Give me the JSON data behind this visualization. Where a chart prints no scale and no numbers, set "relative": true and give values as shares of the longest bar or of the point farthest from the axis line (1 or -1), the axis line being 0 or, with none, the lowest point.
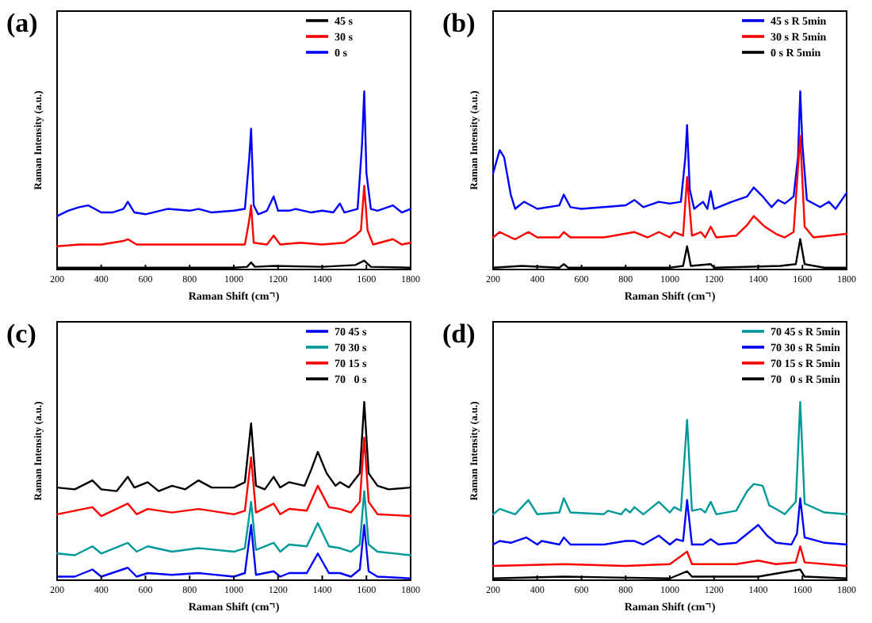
{
  "chart_data": [
    {
      "type": "line",
      "title": "(a)",
      "xlabel": "Raman Shift (cm⁻¹)",
      "ylabel": "Raman Intensity (a.u.)",
      "relative": true,
      "xlim": [
        200,
        1800
      ],
      "xticks": [
        200,
        400,
        600,
        800,
        1000,
        1200,
        1400,
        1600,
        1800
      ],
      "tick_labels": "x",
      "legend": "top right",
      "line_style": "solid",
      "series": [
        {
          "name": "45 s",
          "color": "#000000",
          "x": [
            200,
            600,
            1000,
            1060,
            1078,
            1095,
            1180,
            1400,
            1550,
            1590,
            1620,
            1800
          ],
          "values": [
            0.01,
            0.01,
            0.01,
            0.015,
            0.04,
            0.015,
            0.02,
            0.015,
            0.025,
            0.05,
            0.015,
            0.01
          ]
        },
        {
          "name": "30 s",
          "color": "#ff0000",
          "x": [
            200,
            300,
            400,
            500,
            520,
            560,
            700,
            900,
            1050,
            1070,
            1078,
            1090,
            1150,
            1180,
            1210,
            1300,
            1400,
            1500,
            1550,
            1575,
            1590,
            1605,
            1630,
            1720,
            1760,
            1800
          ],
          "values": [
            0.13,
            0.14,
            0.14,
            0.16,
            0.17,
            0.14,
            0.14,
            0.14,
            0.14,
            0.28,
            0.36,
            0.15,
            0.14,
            0.19,
            0.14,
            0.15,
            0.14,
            0.15,
            0.19,
            0.22,
            0.47,
            0.22,
            0.14,
            0.17,
            0.14,
            0.15
          ]
        },
        {
          "name": "0 s",
          "color": "#0000ff",
          "x": [
            200,
            250,
            300,
            340,
            400,
            450,
            500,
            520,
            550,
            600,
            700,
            800,
            840,
            900,
            1000,
            1050,
            1070,
            1078,
            1090,
            1110,
            1150,
            1180,
            1200,
            1250,
            1280,
            1350,
            1400,
            1450,
            1480,
            1500,
            1560,
            1580,
            1590,
            1600,
            1620,
            1650,
            1720,
            1760,
            1800
          ],
          "values": [
            0.3,
            0.33,
            0.35,
            0.36,
            0.32,
            0.32,
            0.34,
            0.38,
            0.32,
            0.31,
            0.34,
            0.33,
            0.34,
            0.32,
            0.33,
            0.34,
            0.63,
            0.79,
            0.36,
            0.31,
            0.33,
            0.41,
            0.33,
            0.33,
            0.34,
            0.32,
            0.33,
            0.32,
            0.37,
            0.32,
            0.34,
            0.7,
            1.0,
            0.54,
            0.34,
            0.33,
            0.36,
            0.32,
            0.34
          ]
        }
      ]
    },
    {
      "type": "line",
      "title": "(b)",
      "xlabel": "Raman Shift (cm⁻¹)",
      "ylabel": "Raman Intensity (a.u.)",
      "relative": true,
      "xlim": [
        200,
        1800
      ],
      "xticks": [
        200,
        400,
        600,
        800,
        1000,
        1200,
        1400,
        1600,
        1800
      ],
      "tick_labels": "x",
      "legend": "top right",
      "line_style": "solid",
      "series": [
        {
          "name": "45 s R 5min",
          "color": "#0000ff",
          "x": [
            200,
            230,
            250,
            280,
            300,
            340,
            400,
            500,
            520,
            550,
            600,
            700,
            800,
            840,
            880,
            950,
            1000,
            1050,
            1070,
            1078,
            1090,
            1110,
            1150,
            1170,
            1185,
            1200,
            1280,
            1350,
            1380,
            1420,
            1460,
            1490,
            1520,
            1560,
            1580,
            1590,
            1600,
            1620,
            1680,
            1720,
            1750,
            1800
          ],
          "values": [
            0.54,
            0.67,
            0.63,
            0.42,
            0.34,
            0.38,
            0.34,
            0.36,
            0.42,
            0.35,
            0.34,
            0.35,
            0.36,
            0.39,
            0.35,
            0.38,
            0.37,
            0.38,
            0.63,
            0.81,
            0.45,
            0.34,
            0.38,
            0.34,
            0.44,
            0.34,
            0.38,
            0.41,
            0.46,
            0.41,
            0.35,
            0.39,
            0.37,
            0.41,
            0.63,
            1.0,
            0.7,
            0.39,
            0.35,
            0.38,
            0.34,
            0.43
          ]
        },
        {
          "name": "30 s R 5min",
          "color": "#ff0000",
          "x": [
            200,
            230,
            280,
            300,
            360,
            400,
            500,
            520,
            550,
            700,
            840,
            900,
            950,
            1000,
            1020,
            1060,
            1078,
            1100,
            1140,
            1160,
            1185,
            1210,
            1300,
            1350,
            1380,
            1430,
            1480,
            1520,
            1560,
            1590,
            1610,
            1650,
            1800
          ],
          "values": [
            0.18,
            0.21,
            0.18,
            0.17,
            0.21,
            0.18,
            0.18,
            0.21,
            0.18,
            0.18,
            0.21,
            0.18,
            0.21,
            0.18,
            0.21,
            0.19,
            0.52,
            0.19,
            0.21,
            0.18,
            0.24,
            0.18,
            0.19,
            0.25,
            0.3,
            0.24,
            0.2,
            0.18,
            0.21,
            0.75,
            0.24,
            0.18,
            0.2
          ]
        },
        {
          "name": "0 s R 5min",
          "color": "#000000",
          "x": [
            200,
            330,
            500,
            520,
            540,
            1000,
            1060,
            1078,
            1095,
            1185,
            1200,
            1500,
            1570,
            1590,
            1610,
            1700,
            1800
          ],
          "values": [
            0.01,
            0.02,
            0.01,
            0.03,
            0.01,
            0.01,
            0.02,
            0.13,
            0.02,
            0.03,
            0.01,
            0.02,
            0.03,
            0.17,
            0.03,
            0.01,
            0.01
          ]
        }
      ]
    },
    {
      "type": "line",
      "title": "(c)",
      "xlabel": "Raman Shift (cm⁻¹)",
      "ylabel": "Raman Intensity (a.u.)",
      "relative": true,
      "xlim": [
        200,
        1800
      ],
      "xticks": [
        200,
        400,
        600,
        800,
        1000,
        1200,
        1400,
        1600,
        1800
      ],
      "tick_labels": "x",
      "legend": "top right",
      "line_style": "solid",
      "series": [
        {
          "name": "70 45 s",
          "color": "#0000ff",
          "x": [
            200,
            280,
            360,
            400,
            520,
            560,
            610,
            720,
            840,
            1000,
            1050,
            1078,
            1100,
            1180,
            1210,
            1250,
            1330,
            1380,
            1430,
            1480,
            1530,
            1570,
            1590,
            1610,
            1650,
            1800
          ],
          "values": [
            0.02,
            0.02,
            0.06,
            0.02,
            0.07,
            0.02,
            0.04,
            0.03,
            0.04,
            0.02,
            0.04,
            0.31,
            0.03,
            0.05,
            0.02,
            0.04,
            0.04,
            0.15,
            0.04,
            0.04,
            0.02,
            0.06,
            0.31,
            0.05,
            0.02,
            0.01
          ]
        },
        {
          "name": "70 30 s",
          "color": "#009999",
          "x": [
            200,
            280,
            360,
            400,
            520,
            560,
            610,
            720,
            840,
            1000,
            1050,
            1078,
            1100,
            1180,
            1210,
            1250,
            1330,
            1380,
            1430,
            1480,
            1530,
            1570,
            1590,
            1610,
            1650,
            1800
          ],
          "values": [
            0.15,
            0.14,
            0.19,
            0.15,
            0.21,
            0.16,
            0.19,
            0.16,
            0.18,
            0.16,
            0.18,
            0.44,
            0.17,
            0.21,
            0.16,
            0.2,
            0.19,
            0.32,
            0.19,
            0.18,
            0.16,
            0.2,
            0.5,
            0.2,
            0.16,
            0.14
          ]
        },
        {
          "name": "70 15 s",
          "color": "#ff0000",
          "x": [
            200,
            360,
            400,
            520,
            560,
            610,
            720,
            840,
            1000,
            1050,
            1078,
            1100,
            1180,
            1210,
            1250,
            1330,
            1380,
            1430,
            1480,
            1530,
            1570,
            1590,
            1610,
            1650,
            1800
          ],
          "values": [
            0.37,
            0.41,
            0.36,
            0.43,
            0.37,
            0.4,
            0.38,
            0.4,
            0.37,
            0.39,
            0.69,
            0.38,
            0.43,
            0.37,
            0.4,
            0.39,
            0.53,
            0.41,
            0.4,
            0.38,
            0.44,
            0.8,
            0.44,
            0.37,
            0.36
          ]
        },
        {
          "name": "70   0 s",
          "color": "#000000",
          "x": [
            200,
            280,
            360,
            400,
            470,
            520,
            550,
            610,
            660,
            720,
            780,
            840,
            900,
            1000,
            1050,
            1078,
            1100,
            1140,
            1180,
            1210,
            1250,
            1320,
            1350,
            1380,
            1420,
            1460,
            1480,
            1520,
            1570,
            1590,
            1610,
            1650,
            1700,
            1800
          ],
          "values": [
            0.52,
            0.51,
            0.56,
            0.51,
            0.5,
            0.58,
            0.52,
            0.55,
            0.5,
            0.53,
            0.51,
            0.56,
            0.52,
            0.52,
            0.55,
            0.88,
            0.53,
            0.51,
            0.58,
            0.52,
            0.55,
            0.53,
            0.62,
            0.72,
            0.6,
            0.53,
            0.55,
            0.52,
            0.6,
            1.0,
            0.6,
            0.53,
            0.51,
            0.52
          ]
        }
      ]
    },
    {
      "type": "line",
      "title": "(d)",
      "xlabel": "Raman Shift (cm⁻¹)",
      "ylabel": "Raman Intensity (a.u.)",
      "relative": true,
      "xlim": [
        200,
        1800
      ],
      "xticks": [
        200,
        400,
        600,
        800,
        1000,
        1200,
        1400,
        1600,
        1800
      ],
      "tick_labels": "x",
      "legend": "top right",
      "line_style": "solid",
      "series": [
        {
          "name": "70 45 s R 5min",
          "color": "#009999",
          "x": [
            200,
            230,
            300,
            360,
            400,
            500,
            520,
            550,
            700,
            720,
            780,
            800,
            820,
            840,
            880,
            950,
            1000,
            1020,
            1050,
            1078,
            1100,
            1140,
            1160,
            1185,
            1210,
            1300,
            1350,
            1380,
            1420,
            1450,
            1480,
            1520,
            1570,
            1590,
            1610,
            1700,
            1800
          ],
          "values": [
            0.37,
            0.4,
            0.37,
            0.45,
            0.37,
            0.38,
            0.46,
            0.38,
            0.37,
            0.39,
            0.37,
            0.4,
            0.38,
            0.41,
            0.37,
            0.44,
            0.38,
            0.41,
            0.39,
            0.9,
            0.39,
            0.4,
            0.38,
            0.44,
            0.37,
            0.39,
            0.5,
            0.54,
            0.53,
            0.42,
            0.4,
            0.37,
            0.44,
            1.0,
            0.43,
            0.38,
            0.37
          ]
        },
        {
          "name": "70 30 s R 5min",
          "color": "#0000ff",
          "x": [
            200,
            230,
            280,
            350,
            400,
            420,
            500,
            520,
            550,
            700,
            800,
            840,
            880,
            950,
            1000,
            1030,
            1060,
            1078,
            1100,
            1150,
            1185,
            1220,
            1300,
            1360,
            1400,
            1440,
            1480,
            1550,
            1575,
            1590,
            1610,
            1700,
            1800
          ],
          "values": [
            0.2,
            0.22,
            0.21,
            0.24,
            0.2,
            0.22,
            0.2,
            0.24,
            0.2,
            0.2,
            0.22,
            0.22,
            0.2,
            0.25,
            0.2,
            0.23,
            0.22,
            0.45,
            0.2,
            0.2,
            0.23,
            0.2,
            0.21,
            0.27,
            0.31,
            0.25,
            0.21,
            0.2,
            0.26,
            0.46,
            0.24,
            0.21,
            0.2
          ]
        },
        {
          "name": "70 15 s R 5min",
          "color": "#ff0000",
          "x": [
            200,
            520,
            800,
            1000,
            1078,
            1100,
            1185,
            1300,
            1400,
            1480,
            1570,
            1590,
            1610,
            1800
          ],
          "values": [
            0.08,
            0.09,
            0.08,
            0.09,
            0.16,
            0.09,
            0.09,
            0.09,
            0.11,
            0.09,
            0.1,
            0.19,
            0.1,
            0.08
          ]
        },
        {
          "name": "70   0 s R 5min",
          "color": "#000000",
          "x": [
            200,
            520,
            1000,
            1078,
            1100,
            1400,
            1590,
            1610,
            1800
          ],
          "values": [
            0.01,
            0.02,
            0.01,
            0.05,
            0.02,
            0.02,
            0.06,
            0.02,
            0.01
          ]
        }
      ]
    }
  ]
}
